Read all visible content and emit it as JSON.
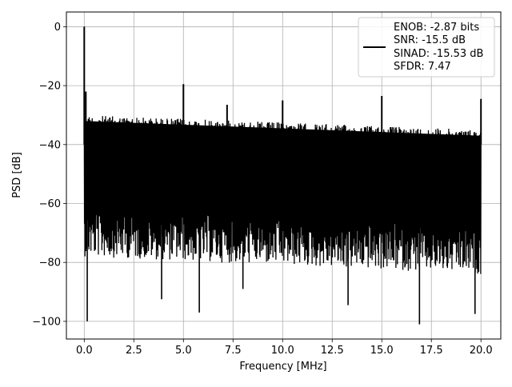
{
  "chart_data": {
    "type": "line",
    "title": "",
    "xlabel": "Frequency [MHz]",
    "ylabel": "PSD [dB]",
    "xlim": [
      -0.9,
      21.0
    ],
    "ylim": [
      -106,
      5
    ],
    "xticks": [
      0.0,
      2.5,
      5.0,
      7.5,
      10.0,
      12.5,
      15.0,
      17.5,
      20.0
    ],
    "xtick_labels": [
      "0.0",
      "2.5",
      "5.0",
      "7.5",
      "10.0",
      "12.5",
      "15.0",
      "17.5",
      "20.0"
    ],
    "yticks": [
      0,
      -20,
      -40,
      -60,
      -80,
      -100
    ],
    "ytick_labels": [
      "0",
      "−20",
      "−40",
      "−60",
      "−80",
      "−100"
    ],
    "grid": true,
    "line_color": "#000000",
    "series": [
      {
        "values_description_free": true,
        "noise_floor_upper_start": -30,
        "noise_floor_upper_end": -35,
        "noise_floor_lower_start": -62,
        "noise_floor_lower_end": -68,
        "spurs": [
          {
            "x": 0.0,
            "y": 0
          },
          {
            "x": 0.08,
            "y": -22
          },
          {
            "x": 5.0,
            "y": -19.5
          },
          {
            "x": 7.2,
            "y": -26.5
          },
          {
            "x": 10.0,
            "y": -25
          },
          {
            "x": 15.0,
            "y": -23.5
          },
          {
            "x": 20.0,
            "y": -24.5
          }
        ],
        "dips": [
          {
            "x": 0.15,
            "y": -100
          },
          {
            "x": 3.9,
            "y": -92.5
          },
          {
            "x": 5.8,
            "y": -97
          },
          {
            "x": 8.0,
            "y": -89
          },
          {
            "x": 13.3,
            "y": -94.5
          },
          {
            "x": 16.9,
            "y": -101
          },
          {
            "x": 19.7,
            "y": -97.5
          }
        ]
      }
    ],
    "legend": {
      "placement": "upper-right",
      "lines": [
        "ENOB: -2.87 bits",
        "SNR: -15.5 dB",
        "SINAD: -15.53 dB",
        "SFDR: 7.47"
      ]
    }
  }
}
